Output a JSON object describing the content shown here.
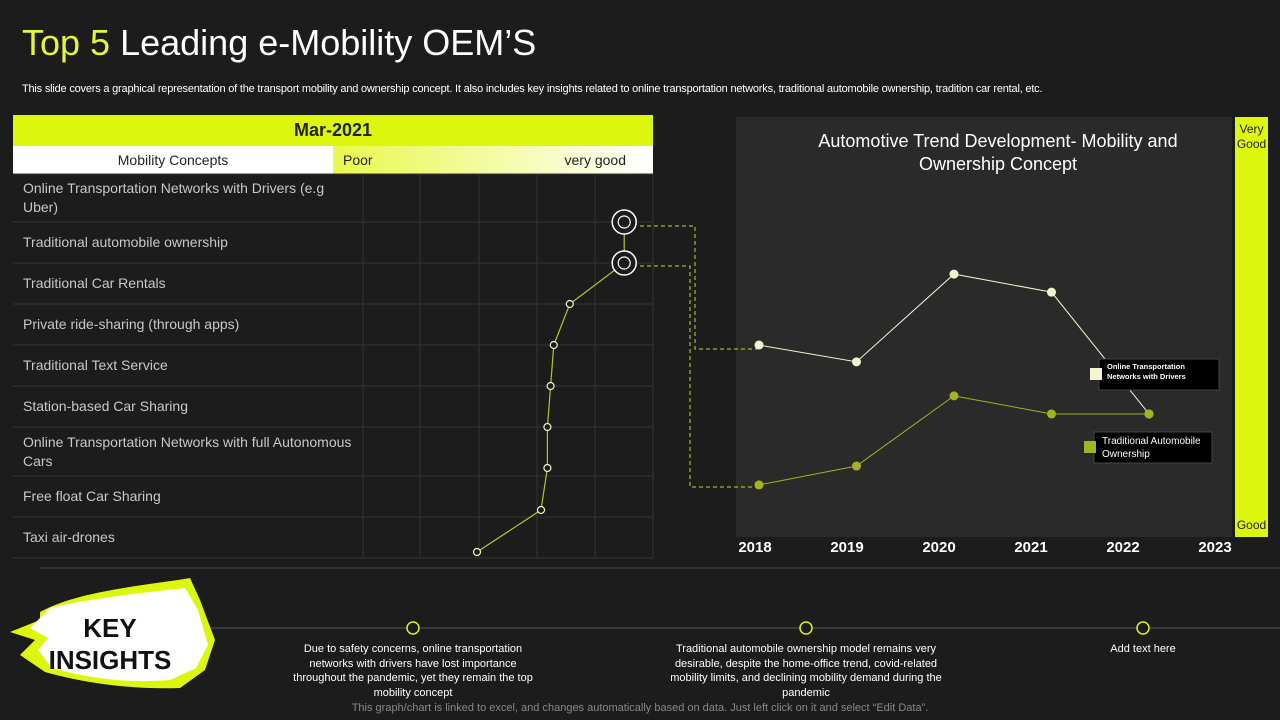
{
  "title_lead": "Top 5",
  "title_rest": "Leading e-Mobility OEM’S",
  "subtitle": "This slide covers a graphical representation of the transport mobility and ownership concept. It also includes key insights related to online transportation networks, traditional automobile ownership, tradition car rental, etc.",
  "chart_data": [
    {
      "type": "line",
      "title": "Mar-2021",
      "category_header": "Mobility Concepts",
      "categories": [
        "Online Transportation Networks with Drivers (e.g Uber)",
        "Traditional automobile ownership",
        "Traditional Car Rentals",
        "Private ride-sharing (through apps)",
        "Traditional Text Service",
        "Station-based Car Sharing",
        "Online Transportation Networks with full Autonomous Cars",
        "Free float Car Sharing",
        "Taxi air-drones"
      ],
      "values": [
        91,
        91,
        74,
        69,
        68,
        67,
        67,
        65,
        45
      ],
      "xlim": [
        0,
        100
      ],
      "xticks": [
        {
          "value": 0,
          "label": "Poor"
        },
        {
          "value": 100,
          "label": "very good"
        }
      ],
      "color": "#b8c42a"
    },
    {
      "type": "line",
      "title": "Automotive Trend Development- Mobility and Ownership Concept",
      "categories": [
        "2018",
        "2019",
        "2020",
        "2021",
        "2022",
        "2023"
      ],
      "series": [
        {
          "name": "Online Transportation Networks with Drivers",
          "color": "#f4f4cf",
          "values": [
            45.7,
            41.7,
            62.6,
            58.3,
            29.3,
            null
          ]
        },
        {
          "name": "Traditional Automobile Ownership",
          "color": "#a4b41e",
          "values": [
            12.4,
            16.9,
            33.6,
            29.3,
            29.3,
            null
          ]
        }
      ],
      "ylim": [
        0,
        100
      ],
      "yticks": [
        {
          "value": 0,
          "label": "Good"
        },
        {
          "value": 100,
          "label": "Very Good"
        }
      ]
    }
  ],
  "key_insights": {
    "heading": "KEY INSIGHTS",
    "items": [
      "Due to safety concerns, online transportation networks with drivers have lost importance throughout the pandemic, yet they remain the top mobility concept",
      "Traditional automobile ownership model remains very desirable, despite the home-office trend, covid-related mobility limits, and declining mobility demand during the pandemic",
      "Add text here"
    ]
  },
  "footer": "This graph/chart is linked to excel, and changes automatically based on data. Just left click on it and select “Edit Data”."
}
